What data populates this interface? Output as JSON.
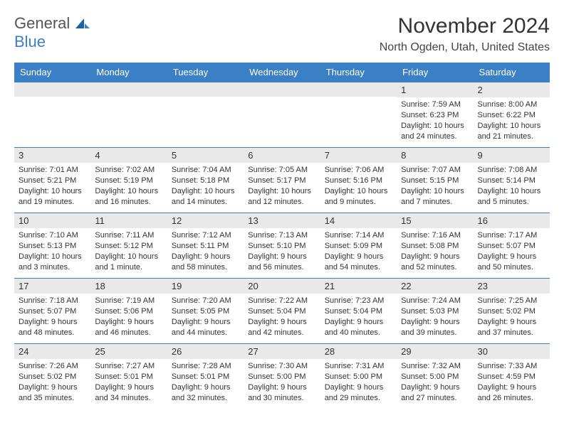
{
  "logo": {
    "general": "General",
    "blue": "Blue"
  },
  "title": "November 2024",
  "location": "North Ogden, Utah, United States",
  "colors": {
    "header_bg": "#3b7fc4",
    "header_text": "#ffffff",
    "daynum_bg": "#e9e9e9",
    "border": "#3b7fc4",
    "text": "#333333"
  },
  "dayHeaders": [
    "Sunday",
    "Monday",
    "Tuesday",
    "Wednesday",
    "Thursday",
    "Friday",
    "Saturday"
  ],
  "weeks": [
    [
      {
        "n": "",
        "sunrise": "",
        "sunset": "",
        "daylight": ""
      },
      {
        "n": "",
        "sunrise": "",
        "sunset": "",
        "daylight": ""
      },
      {
        "n": "",
        "sunrise": "",
        "sunset": "",
        "daylight": ""
      },
      {
        "n": "",
        "sunrise": "",
        "sunset": "",
        "daylight": ""
      },
      {
        "n": "",
        "sunrise": "",
        "sunset": "",
        "daylight": ""
      },
      {
        "n": "1",
        "sunrise": "Sunrise: 7:59 AM",
        "sunset": "Sunset: 6:23 PM",
        "daylight": "Daylight: 10 hours and 24 minutes."
      },
      {
        "n": "2",
        "sunrise": "Sunrise: 8:00 AM",
        "sunset": "Sunset: 6:22 PM",
        "daylight": "Daylight: 10 hours and 21 minutes."
      }
    ],
    [
      {
        "n": "3",
        "sunrise": "Sunrise: 7:01 AM",
        "sunset": "Sunset: 5:21 PM",
        "daylight": "Daylight: 10 hours and 19 minutes."
      },
      {
        "n": "4",
        "sunrise": "Sunrise: 7:02 AM",
        "sunset": "Sunset: 5:19 PM",
        "daylight": "Daylight: 10 hours and 16 minutes."
      },
      {
        "n": "5",
        "sunrise": "Sunrise: 7:04 AM",
        "sunset": "Sunset: 5:18 PM",
        "daylight": "Daylight: 10 hours and 14 minutes."
      },
      {
        "n": "6",
        "sunrise": "Sunrise: 7:05 AM",
        "sunset": "Sunset: 5:17 PM",
        "daylight": "Daylight: 10 hours and 12 minutes."
      },
      {
        "n": "7",
        "sunrise": "Sunrise: 7:06 AM",
        "sunset": "Sunset: 5:16 PM",
        "daylight": "Daylight: 10 hours and 9 minutes."
      },
      {
        "n": "8",
        "sunrise": "Sunrise: 7:07 AM",
        "sunset": "Sunset: 5:15 PM",
        "daylight": "Daylight: 10 hours and 7 minutes."
      },
      {
        "n": "9",
        "sunrise": "Sunrise: 7:08 AM",
        "sunset": "Sunset: 5:14 PM",
        "daylight": "Daylight: 10 hours and 5 minutes."
      }
    ],
    [
      {
        "n": "10",
        "sunrise": "Sunrise: 7:10 AM",
        "sunset": "Sunset: 5:13 PM",
        "daylight": "Daylight: 10 hours and 3 minutes."
      },
      {
        "n": "11",
        "sunrise": "Sunrise: 7:11 AM",
        "sunset": "Sunset: 5:12 PM",
        "daylight": "Daylight: 10 hours and 1 minute."
      },
      {
        "n": "12",
        "sunrise": "Sunrise: 7:12 AM",
        "sunset": "Sunset: 5:11 PM",
        "daylight": "Daylight: 9 hours and 58 minutes."
      },
      {
        "n": "13",
        "sunrise": "Sunrise: 7:13 AM",
        "sunset": "Sunset: 5:10 PM",
        "daylight": "Daylight: 9 hours and 56 minutes."
      },
      {
        "n": "14",
        "sunrise": "Sunrise: 7:14 AM",
        "sunset": "Sunset: 5:09 PM",
        "daylight": "Daylight: 9 hours and 54 minutes."
      },
      {
        "n": "15",
        "sunrise": "Sunrise: 7:16 AM",
        "sunset": "Sunset: 5:08 PM",
        "daylight": "Daylight: 9 hours and 52 minutes."
      },
      {
        "n": "16",
        "sunrise": "Sunrise: 7:17 AM",
        "sunset": "Sunset: 5:07 PM",
        "daylight": "Daylight: 9 hours and 50 minutes."
      }
    ],
    [
      {
        "n": "17",
        "sunrise": "Sunrise: 7:18 AM",
        "sunset": "Sunset: 5:07 PM",
        "daylight": "Daylight: 9 hours and 48 minutes."
      },
      {
        "n": "18",
        "sunrise": "Sunrise: 7:19 AM",
        "sunset": "Sunset: 5:06 PM",
        "daylight": "Daylight: 9 hours and 46 minutes."
      },
      {
        "n": "19",
        "sunrise": "Sunrise: 7:20 AM",
        "sunset": "Sunset: 5:05 PM",
        "daylight": "Daylight: 9 hours and 44 minutes."
      },
      {
        "n": "20",
        "sunrise": "Sunrise: 7:22 AM",
        "sunset": "Sunset: 5:04 PM",
        "daylight": "Daylight: 9 hours and 42 minutes."
      },
      {
        "n": "21",
        "sunrise": "Sunrise: 7:23 AM",
        "sunset": "Sunset: 5:04 PM",
        "daylight": "Daylight: 9 hours and 40 minutes."
      },
      {
        "n": "22",
        "sunrise": "Sunrise: 7:24 AM",
        "sunset": "Sunset: 5:03 PM",
        "daylight": "Daylight: 9 hours and 39 minutes."
      },
      {
        "n": "23",
        "sunrise": "Sunrise: 7:25 AM",
        "sunset": "Sunset: 5:02 PM",
        "daylight": "Daylight: 9 hours and 37 minutes."
      }
    ],
    [
      {
        "n": "24",
        "sunrise": "Sunrise: 7:26 AM",
        "sunset": "Sunset: 5:02 PM",
        "daylight": "Daylight: 9 hours and 35 minutes."
      },
      {
        "n": "25",
        "sunrise": "Sunrise: 7:27 AM",
        "sunset": "Sunset: 5:01 PM",
        "daylight": "Daylight: 9 hours and 34 minutes."
      },
      {
        "n": "26",
        "sunrise": "Sunrise: 7:28 AM",
        "sunset": "Sunset: 5:01 PM",
        "daylight": "Daylight: 9 hours and 32 minutes."
      },
      {
        "n": "27",
        "sunrise": "Sunrise: 7:30 AM",
        "sunset": "Sunset: 5:00 PM",
        "daylight": "Daylight: 9 hours and 30 minutes."
      },
      {
        "n": "28",
        "sunrise": "Sunrise: 7:31 AM",
        "sunset": "Sunset: 5:00 PM",
        "daylight": "Daylight: 9 hours and 29 minutes."
      },
      {
        "n": "29",
        "sunrise": "Sunrise: 7:32 AM",
        "sunset": "Sunset: 5:00 PM",
        "daylight": "Daylight: 9 hours and 27 minutes."
      },
      {
        "n": "30",
        "sunrise": "Sunrise: 7:33 AM",
        "sunset": "Sunset: 4:59 PM",
        "daylight": "Daylight: 9 hours and 26 minutes."
      }
    ]
  ]
}
